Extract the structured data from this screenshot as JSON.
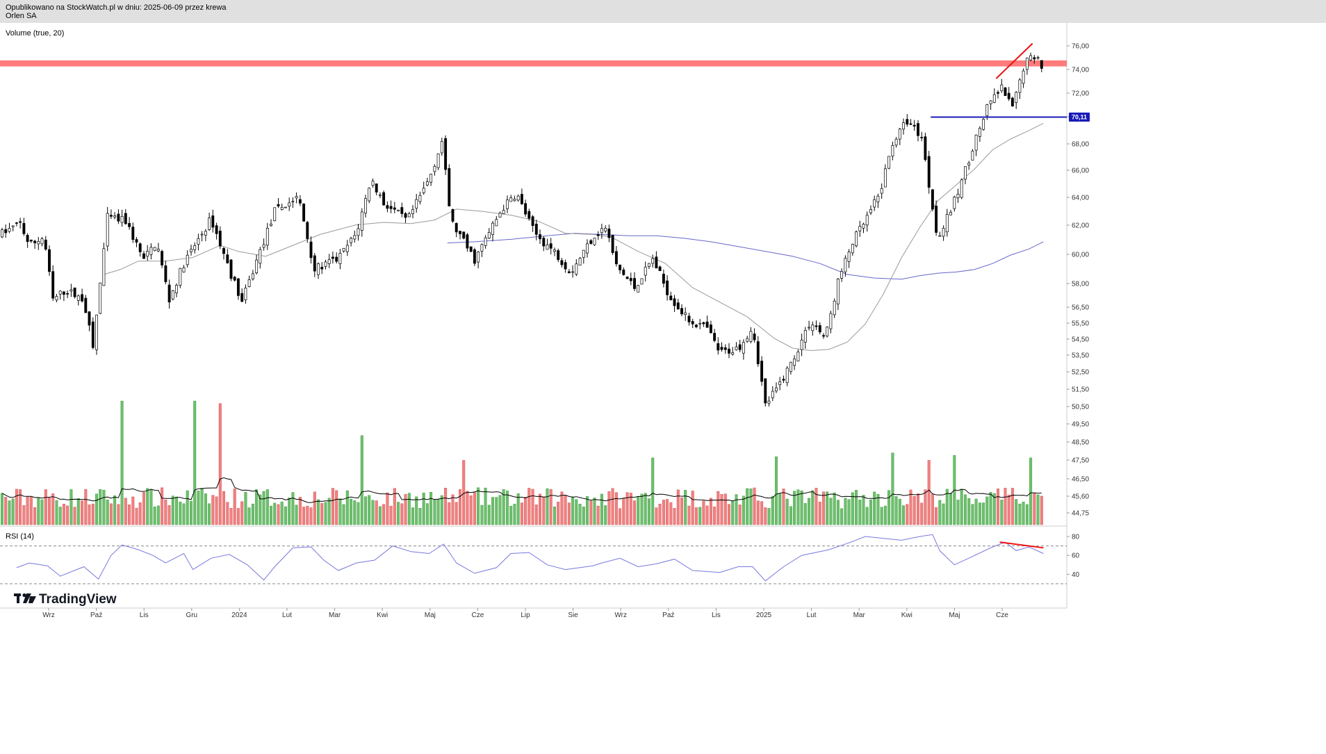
{
  "header": {
    "published": "Opublikowano na StockWatch.pl w dniu: 2025-06-09 przez krewa",
    "symbol": "Orlen SA"
  },
  "panes": {
    "volume_label": "Volume (true, 20)",
    "rsi_label": "RSI (14)"
  },
  "brand": {
    "name": "TradingView"
  },
  "colors": {
    "up": "#6dbf6d",
    "down": "#f08080",
    "candle": "#000000",
    "ma_short": "#999999",
    "ma_long": "#6666cc",
    "rsi": "#7777dd",
    "resistance_band": "#ff7b7b",
    "support_line": "#1a1ab8",
    "divergence": "#ee1111",
    "volume_ma": "#000000"
  },
  "chart_data": [
    {
      "type": "candlestick",
      "title": "Orlen SA",
      "ylim": [
        44.3,
        77.0
      ],
      "y_ticks": [
        "76,00",
        "74,00",
        "72,00",
        "70,00",
        "68,00",
        "66,00",
        "64,00",
        "62,00",
        "60,00",
        "58,00",
        "56,50",
        "55,50",
        "54,50",
        "53,50",
        "52,50",
        "51,50",
        "50,50",
        "49,50",
        "48,50",
        "47,50",
        "46,50",
        "45,60",
        "44,75"
      ],
      "x_ticks": [
        "Wrz",
        "Paź",
        "Lis",
        "Gru",
        "2024",
        "Lut",
        "Mar",
        "Kwi",
        "Maj",
        "Cze",
        "Lip",
        "Sie",
        "Wrz",
        "Paź",
        "Lis",
        "2025",
        "Lut",
        "Mar",
        "Kwi",
        "Maj",
        "Cze"
      ],
      "price_path": [
        {
          "t": 0.0,
          "v": 60.5
        },
        {
          "t": 1.0,
          "v": 61.3
        },
        {
          "t": 1.5,
          "v": 59.5
        },
        {
          "t": 2.3,
          "v": 60.2
        },
        {
          "t": 2.8,
          "v": 55.0
        },
        {
          "t": 3.5,
          "v": 55.8
        },
        {
          "t": 4.5,
          "v": 55.0
        },
        {
          "t": 5.0,
          "v": 51.0
        },
        {
          "t": 5.8,
          "v": 61.8
        },
        {
          "t": 6.8,
          "v": 61.5
        },
        {
          "t": 7.8,
          "v": 58.3
        },
        {
          "t": 8.5,
          "v": 59.8
        },
        {
          "t": 9.2,
          "v": 55.0
        },
        {
          "t": 10.0,
          "v": 58.0
        },
        {
          "t": 11.5,
          "v": 61.7
        },
        {
          "t": 12.5,
          "v": 57.5
        },
        {
          "t": 13.2,
          "v": 54.8
        },
        {
          "t": 14.0,
          "v": 58.2
        },
        {
          "t": 15.0,
          "v": 62.3
        },
        {
          "t": 16.3,
          "v": 63.5
        },
        {
          "t": 17.2,
          "v": 57.5
        },
        {
          "t": 18.5,
          "v": 58.4
        },
        {
          "t": 19.5,
          "v": 60.5
        },
        {
          "t": 20.3,
          "v": 65.0
        },
        {
          "t": 21.0,
          "v": 63.0
        },
        {
          "t": 22.3,
          "v": 61.5
        },
        {
          "t": 23.5,
          "v": 65.0
        },
        {
          "t": 24.2,
          "v": 68.1
        },
        {
          "t": 24.7,
          "v": 61.5
        },
        {
          "t": 26.0,
          "v": 58.3
        },
        {
          "t": 27.5,
          "v": 62.5
        },
        {
          "t": 28.3,
          "v": 63.8
        },
        {
          "t": 29.3,
          "v": 60.5
        },
        {
          "t": 30.5,
          "v": 58.8
        },
        {
          "t": 31.3,
          "v": 57.3
        },
        {
          "t": 32.5,
          "v": 60.2
        },
        {
          "t": 33.2,
          "v": 61.0
        },
        {
          "t": 33.8,
          "v": 57.8
        },
        {
          "t": 34.8,
          "v": 56.0
        },
        {
          "t": 35.8,
          "v": 58.4
        },
        {
          "t": 36.7,
          "v": 55.4
        },
        {
          "t": 37.7,
          "v": 53.4
        },
        {
          "t": 38.8,
          "v": 52.6
        },
        {
          "t": 39.5,
          "v": 50.6
        },
        {
          "t": 40.5,
          "v": 51.0
        },
        {
          "t": 41.3,
          "v": 52.8
        },
        {
          "t": 42.0,
          "v": 46.3
        },
        {
          "t": 42.7,
          "v": 47.8
        },
        {
          "t": 43.5,
          "v": 50.0
        },
        {
          "t": 44.5,
          "v": 53.3
        },
        {
          "t": 45.3,
          "v": 51.8
        },
        {
          "t": 46.0,
          "v": 56.5
        },
        {
          "t": 46.8,
          "v": 59.8
        },
        {
          "t": 47.5,
          "v": 61.5
        },
        {
          "t": 48.3,
          "v": 63.8
        },
        {
          "t": 49.0,
          "v": 68.0
        },
        {
          "t": 49.8,
          "v": 69.8
        },
        {
          "t": 50.6,
          "v": 68.5
        },
        {
          "t": 51.0,
          "v": 64.5
        },
        {
          "t": 51.5,
          "v": 60.0
        },
        {
          "t": 52.5,
          "v": 63.5
        },
        {
          "t": 53.5,
          "v": 68.0
        },
        {
          "t": 54.3,
          "v": 71.2
        },
        {
          "t": 55.0,
          "v": 72.5
        },
        {
          "t": 55.6,
          "v": 70.8
        },
        {
          "t": 56.3,
          "v": 74.8
        },
        {
          "t": 57.0,
          "v": 75.2
        },
        {
          "t": 57.3,
          "v": 74.0
        }
      ],
      "ma_short_path": [
        {
          "t": 5.6,
          "v": 57.1
        },
        {
          "t": 6.5,
          "v": 57.5
        },
        {
          "t": 7.5,
          "v": 58.2
        },
        {
          "t": 9.0,
          "v": 58.2
        },
        {
          "t": 10.5,
          "v": 58.5
        },
        {
          "t": 12.0,
          "v": 59.5
        },
        {
          "t": 13.0,
          "v": 59.0
        },
        {
          "t": 14.5,
          "v": 58.6
        },
        {
          "t": 16.0,
          "v": 59.5
        },
        {
          "t": 17.5,
          "v": 60.4
        },
        {
          "t": 19.5,
          "v": 61.2
        },
        {
          "t": 21.0,
          "v": 61.4
        },
        {
          "t": 22.5,
          "v": 61.3
        },
        {
          "t": 23.8,
          "v": 61.6
        },
        {
          "t": 25.0,
          "v": 62.5
        },
        {
          "t": 26.5,
          "v": 62.3
        },
        {
          "t": 28.0,
          "v": 62.0
        },
        {
          "t": 29.5,
          "v": 61.5
        },
        {
          "t": 31.0,
          "v": 60.5
        },
        {
          "t": 32.5,
          "v": 60.4
        },
        {
          "t": 33.5,
          "v": 60.2
        },
        {
          "t": 35.0,
          "v": 59.0
        },
        {
          "t": 36.5,
          "v": 58.0
        },
        {
          "t": 38.0,
          "v": 56.0
        },
        {
          "t": 39.5,
          "v": 54.8
        },
        {
          "t": 41.0,
          "v": 53.6
        },
        {
          "t": 42.5,
          "v": 51.8
        },
        {
          "t": 43.5,
          "v": 51.0
        },
        {
          "t": 44.5,
          "v": 50.8
        },
        {
          "t": 45.5,
          "v": 50.9
        },
        {
          "t": 46.5,
          "v": 51.5
        },
        {
          "t": 47.5,
          "v": 53.0
        },
        {
          "t": 48.5,
          "v": 55.5
        },
        {
          "t": 49.5,
          "v": 58.5
        },
        {
          "t": 50.5,
          "v": 61.0
        },
        {
          "t": 51.5,
          "v": 63.2
        },
        {
          "t": 52.5,
          "v": 64.5
        },
        {
          "t": 53.5,
          "v": 65.8
        },
        {
          "t": 54.5,
          "v": 67.4
        },
        {
          "t": 55.5,
          "v": 68.3
        },
        {
          "t": 56.5,
          "v": 69.0
        },
        {
          "t": 57.3,
          "v": 69.6
        }
      ],
      "ma_long_path": [
        {
          "t": 24.5,
          "v": 59.7
        },
        {
          "t": 26.0,
          "v": 59.8
        },
        {
          "t": 28.0,
          "v": 60.0
        },
        {
          "t": 30.0,
          "v": 60.3
        },
        {
          "t": 31.5,
          "v": 60.5
        },
        {
          "t": 33.0,
          "v": 60.4
        },
        {
          "t": 34.5,
          "v": 60.3
        },
        {
          "t": 36.0,
          "v": 60.3
        },
        {
          "t": 37.5,
          "v": 60.1
        },
        {
          "t": 39.0,
          "v": 59.8
        },
        {
          "t": 40.5,
          "v": 59.4
        },
        {
          "t": 42.0,
          "v": 59.0
        },
        {
          "t": 43.5,
          "v": 58.6
        },
        {
          "t": 45.0,
          "v": 58.0
        },
        {
          "t": 46.5,
          "v": 57.1
        },
        {
          "t": 48.0,
          "v": 56.8
        },
        {
          "t": 49.5,
          "v": 56.7
        },
        {
          "t": 50.5,
          "v": 57.0
        },
        {
          "t": 51.5,
          "v": 57.2
        },
        {
          "t": 52.5,
          "v": 57.3
        },
        {
          "t": 53.5,
          "v": 57.5
        },
        {
          "t": 54.5,
          "v": 58.0
        },
        {
          "t": 55.5,
          "v": 58.7
        },
        {
          "t": 56.5,
          "v": 59.2
        },
        {
          "t": 57.3,
          "v": 59.8
        }
      ],
      "resistance_band": [
        74.3,
        74.8
      ],
      "support_level": 70.11,
      "support_label": "70,11",
      "support_start_t": 51.1,
      "trendline": {
        "t1": 54.7,
        "v1": 73.3,
        "t2": 56.7,
        "v2": 76.2
      },
      "volume_spikes": [
        {
          "t": 6.6,
          "v": 1.0
        },
        {
          "t": 10.5,
          "v": 1.0
        },
        {
          "t": 11.9,
          "v": 0.98
        },
        {
          "t": 19.7,
          "v": 0.72
        },
        {
          "t": 25.3,
          "v": 0.52
        },
        {
          "t": 35.8,
          "v": 0.54
        },
        {
          "t": 38.1,
          "v": 0.52
        },
        {
          "t": 42.7,
          "v": 0.55
        },
        {
          "t": 49.1,
          "v": 0.58
        },
        {
          "t": 51.1,
          "v": 0.52
        },
        {
          "t": 52.4,
          "v": 0.56
        },
        {
          "t": 56.7,
          "v": 0.54
        }
      ]
    },
    {
      "type": "line",
      "title": "RSI (14)",
      "ylim": [
        30,
        85
      ],
      "y_ticks": [
        "80",
        "60",
        "40"
      ],
      "bands": [
        70,
        30
      ],
      "rsi_path": [
        {
          "t": 0.8,
          "v": 47
        },
        {
          "t": 1.5,
          "v": 52
        },
        {
          "t": 2.5,
          "v": 49
        },
        {
          "t": 3.2,
          "v": 38
        },
        {
          "t": 4.5,
          "v": 48
        },
        {
          "t": 5.3,
          "v": 35
        },
        {
          "t": 6.0,
          "v": 60
        },
        {
          "t": 6.6,
          "v": 71
        },
        {
          "t": 7.5,
          "v": 66
        },
        {
          "t": 8.3,
          "v": 60
        },
        {
          "t": 9.0,
          "v": 52
        },
        {
          "t": 10.0,
          "v": 62
        },
        {
          "t": 10.5,
          "v": 45
        },
        {
          "t": 11.5,
          "v": 57
        },
        {
          "t": 12.5,
          "v": 61
        },
        {
          "t": 13.5,
          "v": 50
        },
        {
          "t": 14.4,
          "v": 34
        },
        {
          "t": 15.0,
          "v": 48
        },
        {
          "t": 16.0,
          "v": 68
        },
        {
          "t": 17.0,
          "v": 69
        },
        {
          "t": 17.7,
          "v": 55
        },
        {
          "t": 18.5,
          "v": 44
        },
        {
          "t": 19.5,
          "v": 52
        },
        {
          "t": 20.5,
          "v": 55
        },
        {
          "t": 21.5,
          "v": 70
        },
        {
          "t": 22.5,
          "v": 64
        },
        {
          "t": 23.5,
          "v": 62
        },
        {
          "t": 24.3,
          "v": 72
        },
        {
          "t": 25.0,
          "v": 52
        },
        {
          "t": 26.0,
          "v": 41
        },
        {
          "t": 27.2,
          "v": 47
        },
        {
          "t": 28.0,
          "v": 62
        },
        {
          "t": 29.0,
          "v": 63
        },
        {
          "t": 30.0,
          "v": 50
        },
        {
          "t": 31.0,
          "v": 45
        },
        {
          "t": 32.5,
          "v": 49
        },
        {
          "t": 33.0,
          "v": 52
        },
        {
          "t": 34.0,
          "v": 57
        },
        {
          "t": 35.0,
          "v": 48
        },
        {
          "t": 36.0,
          "v": 51
        },
        {
          "t": 37.0,
          "v": 56
        },
        {
          "t": 38.0,
          "v": 44
        },
        {
          "t": 39.5,
          "v": 42
        },
        {
          "t": 40.5,
          "v": 48
        },
        {
          "t": 41.3,
          "v": 48
        },
        {
          "t": 42.0,
          "v": 33
        },
        {
          "t": 43.0,
          "v": 48
        },
        {
          "t": 44.0,
          "v": 60
        },
        {
          "t": 45.5,
          "v": 66
        },
        {
          "t": 46.7,
          "v": 74
        },
        {
          "t": 47.5,
          "v": 80
        },
        {
          "t": 48.5,
          "v": 78
        },
        {
          "t": 49.5,
          "v": 76
        },
        {
          "t": 50.5,
          "v": 80
        },
        {
          "t": 51.2,
          "v": 82
        },
        {
          "t": 51.6,
          "v": 65
        },
        {
          "t": 52.4,
          "v": 50
        },
        {
          "t": 53.3,
          "v": 58
        },
        {
          "t": 54.5,
          "v": 69
        },
        {
          "t": 55.2,
          "v": 74
        },
        {
          "t": 55.8,
          "v": 65
        },
        {
          "t": 56.5,
          "v": 69
        },
        {
          "t": 57.3,
          "v": 62
        }
      ],
      "divergence": {
        "t1": 54.9,
        "v1": 74,
        "t2": 57.3,
        "v2": 68
      }
    }
  ]
}
